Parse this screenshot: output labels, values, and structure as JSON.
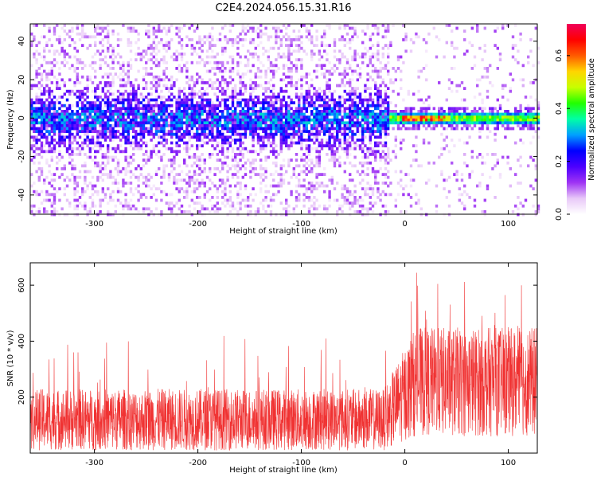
{
  "title": "C2E4.2024.056.15.31.R16",
  "chart_data": [
    {
      "type": "heatmap",
      "xlabel": "Height of straight line (km)",
      "ylabel": "Frequency (Hz)",
      "xlim": [
        -362,
        128
      ],
      "ylim": [
        -50,
        49
      ],
      "xticks": [
        -300,
        -200,
        -100,
        0,
        100
      ],
      "yticks": [
        -40,
        -20,
        0,
        20,
        40
      ],
      "colorbar": {
        "label": "Normalized spectral amplitude",
        "range": [
          0,
          0.72
        ],
        "ticks": [
          "0.0",
          "0.2",
          "0.4",
          "0.6"
        ],
        "colormap": [
          "#ffffff",
          "#e8c8f8",
          "#9e33f4",
          "#4c00ff",
          "#0000ff",
          "#00a0ff",
          "#00ffa6",
          "#22ff00",
          "#c8ff00",
          "#ffd500",
          "#ff5a00",
          "#ff0000",
          "#f0005a"
        ]
      },
      "description_values": {
        "noise_band_center_hz": 0,
        "noise_band_halfwidth_hz": 6,
        "tone_start_km": -15,
        "tone_center_hz": 1
      }
    },
    {
      "type": "line",
      "xlabel": "Height of straight line (km)",
      "ylabel": "SNR (10 * v/v)",
      "xlim": [
        -362,
        128
      ],
      "ylim": [
        0,
        680
      ],
      "xticks": [
        -300,
        -200,
        -100,
        0,
        100
      ],
      "yticks": [
        200,
        400,
        600
      ],
      "series": [
        {
          "color": "#f03232",
          "segments": [
            {
              "x_from": -362,
              "x_to": -20,
              "low": 10,
              "high": 230,
              "spike_max": 420
            },
            {
              "x_from": -20,
              "x_to": 128,
              "low": 60,
              "high": 450,
              "spike_max": 650
            }
          ]
        }
      ]
    }
  ]
}
